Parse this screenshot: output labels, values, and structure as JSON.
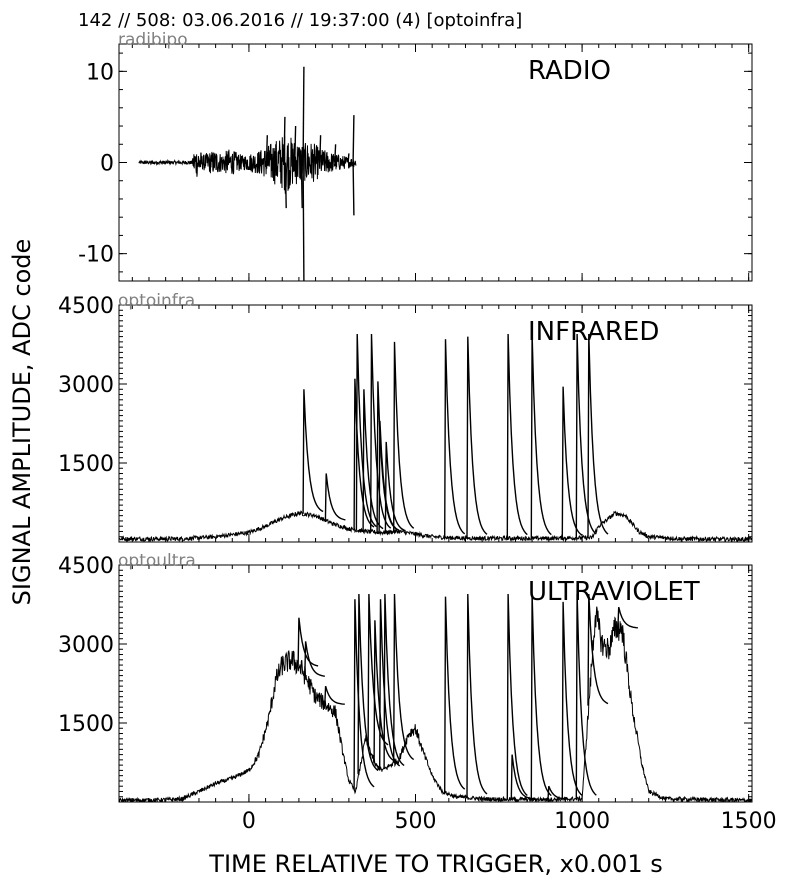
{
  "header": {
    "title": "142 // 508:   03.06.2016 // 19:37:00 (4)  [optoinfra]"
  },
  "chart_data": {
    "type": "line",
    "ylabel": "SIGNAL AMPLITUDE,  ADC code",
    "xlabel": "TIME RELATIVE TO TRIGGER,   x0.001 s",
    "xlim": [
      -390,
      1510
    ],
    "x_ticks": [
      0,
      500,
      1000,
      1500
    ],
    "grid": false,
    "panels": [
      {
        "name": "radio",
        "channel": "radibipo",
        "label": "RADIO",
        "ylim": [
          -13,
          13
        ],
        "y_ticks": [
          -10,
          0,
          10
        ],
        "x_range": [
          -330,
          322
        ],
        "envelope": [
          [
            -330,
            0.2
          ],
          [
            -170,
            0.2
          ],
          [
            -165,
            1.5
          ],
          [
            -150,
            1.8
          ],
          [
            -140,
            0.8
          ],
          [
            -120,
            1.2
          ],
          [
            -100,
            1.4
          ],
          [
            -80,
            1.0
          ],
          [
            -60,
            1.5
          ],
          [
            -40,
            1.2
          ],
          [
            -20,
            0.8
          ],
          [
            0,
            1.0
          ],
          [
            20,
            1.2
          ],
          [
            40,
            1.5
          ],
          [
            60,
            2.0
          ],
          [
            80,
            2.5
          ],
          [
            100,
            3.0
          ],
          [
            110,
            3.5
          ],
          [
            120,
            3.0
          ],
          [
            140,
            2.5
          ],
          [
            150,
            2.5
          ],
          [
            165,
            2.0
          ],
          [
            180,
            2.5
          ],
          [
            200,
            2.0
          ],
          [
            220,
            1.5
          ],
          [
            240,
            1.2
          ],
          [
            260,
            1.0
          ],
          [
            280,
            0.8
          ],
          [
            300,
            0.6
          ],
          [
            320,
            0.5
          ]
        ],
        "spikes": [
          [
            165,
            10.5
          ],
          [
            165,
            -13
          ],
          [
            160,
            -5
          ],
          [
            108,
            5
          ],
          [
            112,
            -5
          ],
          [
            55,
            3
          ],
          [
            140,
            4
          ],
          [
            215,
            3
          ],
          [
            260,
            2
          ],
          [
            300,
            1
          ],
          [
            315,
            5.2
          ],
          [
            315,
            -5.8
          ]
        ]
      },
      {
        "name": "infrared",
        "channel": "optoinfra",
        "label": "INFRARED",
        "ylim": [
          0,
          4500
        ],
        "y_ticks": [
          1500,
          3000,
          4500
        ],
        "baseline": [
          [
            -390,
            60
          ],
          [
            -200,
            60
          ],
          [
            -100,
            100
          ],
          [
            0,
            180
          ],
          [
            50,
            300
          ],
          [
            100,
            450
          ],
          [
            150,
            550
          ],
          [
            200,
            500
          ],
          [
            250,
            350
          ],
          [
            300,
            250
          ],
          [
            350,
            200
          ],
          [
            400,
            180
          ],
          [
            450,
            200
          ],
          [
            500,
            150
          ],
          [
            550,
            100
          ],
          [
            600,
            80
          ],
          [
            700,
            70
          ],
          [
            800,
            70
          ],
          [
            900,
            70
          ],
          [
            1000,
            80
          ],
          [
            1030,
            80
          ],
          [
            1050,
            300
          ],
          [
            1100,
            550
          ],
          [
            1130,
            500
          ],
          [
            1170,
            200
          ],
          [
            1200,
            100
          ],
          [
            1300,
            60
          ],
          [
            1510,
            50
          ]
        ],
        "spikes": [
          [
            165,
            2900
          ],
          [
            232,
            1300
          ],
          [
            318,
            3100
          ],
          [
            325,
            3950
          ],
          [
            345,
            2900
          ],
          [
            368,
            3950
          ],
          [
            387,
            3050
          ],
          [
            393,
            2300
          ],
          [
            412,
            1900
          ],
          [
            437,
            3800
          ],
          [
            590,
            3850
          ],
          [
            657,
            3900
          ],
          [
            778,
            3950
          ],
          [
            850,
            3950
          ],
          [
            943,
            2950
          ],
          [
            985,
            3950
          ],
          [
            1020,
            3950
          ]
        ]
      },
      {
        "name": "ultraviolet",
        "channel": "optoultra",
        "label": "ULTRAVIOLET",
        "ylim": [
          0,
          4500
        ],
        "y_ticks": [
          1500,
          3000,
          4500
        ],
        "baseline": [
          [
            -390,
            30
          ],
          [
            -250,
            40
          ],
          [
            -200,
            60
          ],
          [
            -150,
            200
          ],
          [
            -100,
            350
          ],
          [
            -50,
            450
          ],
          [
            0,
            600
          ],
          [
            30,
            900
          ],
          [
            60,
            1600
          ],
          [
            80,
            2300
          ],
          [
            100,
            2600
          ],
          [
            130,
            2700
          ],
          [
            160,
            2500
          ],
          [
            200,
            2000
          ],
          [
            240,
            1800
          ],
          [
            260,
            1700
          ],
          [
            280,
            1000
          ],
          [
            300,
            400
          ],
          [
            320,
            200
          ],
          [
            350,
            1200
          ],
          [
            380,
            700
          ],
          [
            400,
            600
          ],
          [
            450,
            800
          ],
          [
            480,
            1300
          ],
          [
            500,
            1400
          ],
          [
            520,
            1000
          ],
          [
            550,
            500
          ],
          [
            580,
            200
          ],
          [
            620,
            100
          ],
          [
            700,
            60
          ],
          [
            800,
            50
          ],
          [
            900,
            50
          ],
          [
            1000,
            60
          ],
          [
            1040,
            3600
          ],
          [
            1060,
            3000
          ],
          [
            1080,
            2900
          ],
          [
            1100,
            3300
          ],
          [
            1120,
            3300
          ],
          [
            1150,
            1800
          ],
          [
            1180,
            700
          ],
          [
            1200,
            200
          ],
          [
            1250,
            60
          ],
          [
            1510,
            30
          ]
        ],
        "spikes": [
          [
            150,
            3500
          ],
          [
            170,
            3050
          ],
          [
            230,
            2200
          ],
          [
            318,
            3850
          ],
          [
            330,
            3950
          ],
          [
            360,
            3950
          ],
          [
            378,
            3450
          ],
          [
            395,
            3850
          ],
          [
            408,
            3950
          ],
          [
            437,
            3950
          ],
          [
            590,
            3900
          ],
          [
            657,
            3950
          ],
          [
            778,
            3950
          ],
          [
            790,
            900
          ],
          [
            850,
            3950
          ],
          [
            900,
            300
          ],
          [
            943,
            3800
          ],
          [
            985,
            3950
          ],
          [
            1020,
            3950
          ],
          [
            1110,
            3700
          ]
        ]
      }
    ]
  }
}
